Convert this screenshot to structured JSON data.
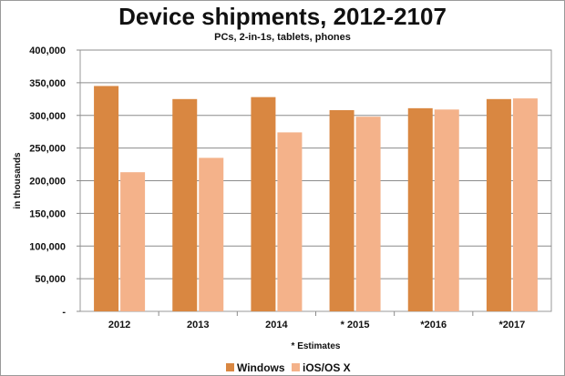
{
  "chart_data": {
    "type": "bar",
    "title": "Device shipments, 2012-2107",
    "subtitle": "PCs, 2-in-1s, tablets, phones",
    "ylabel": "in thousands",
    "xnote": "* Estimates",
    "categories": [
      "2012",
      "2013",
      "2014",
      "* 2015",
      "*2016",
      "*2017"
    ],
    "ytick_labels": [
      "-",
      "50,000",
      "100,000",
      "150,000",
      "200,000",
      "250,000",
      "300,000",
      "350,000",
      "400,000"
    ],
    "ylim": [
      0,
      400000
    ],
    "grid": true,
    "legend": "bottom",
    "series": [
      {
        "name": "Windows",
        "color": "#d98741",
        "values": [
          345000,
          325000,
          328000,
          308000,
          311000,
          325000
        ]
      },
      {
        "name": "iOS/OS X",
        "color": "#f4b28a",
        "values": [
          213000,
          235000,
          274000,
          298000,
          309000,
          326000
        ]
      }
    ]
  }
}
